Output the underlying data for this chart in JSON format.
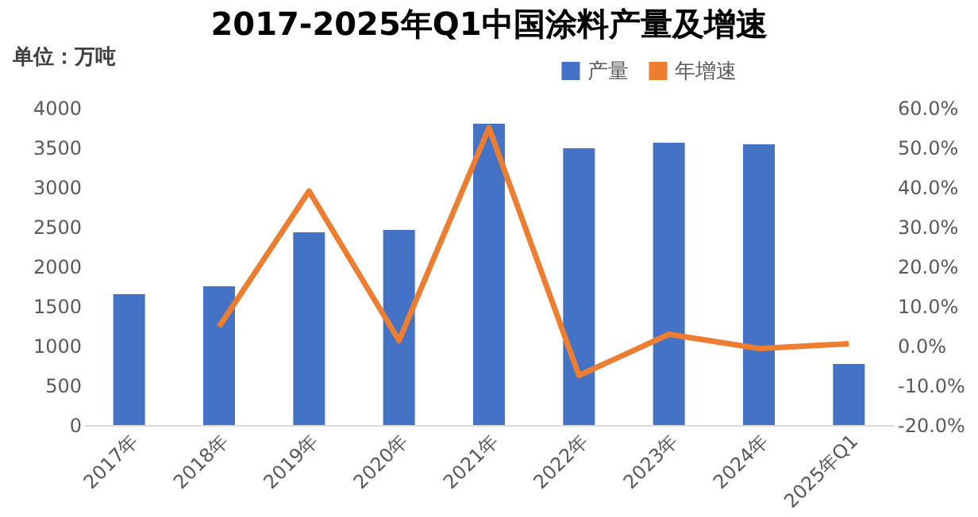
{
  "chart_data": {
    "type": "bar",
    "title": "2017-2025年Q1中国涂料产量及增速",
    "annotations": [
      "单位：万吨"
    ],
    "categories": [
      "2017年",
      "2018年",
      "2019年",
      "2020年",
      "2021年",
      "2022年",
      "2023年",
      "2024年",
      "2025年Q1"
    ],
    "series": [
      {
        "name": "产量",
        "color": "#4472c4",
        "values": [
          1650,
          1750,
          2430,
          2460,
          3800,
          3490,
          3560,
          3540,
          770
        ]
      },
      {
        "name": "年增速",
        "color": "#ed7d31",
        "type": "line",
        "axis": "y2",
        "values": [
          null,
          4.8,
          39,
          1.3,
          55,
          -7.5,
          2.9,
          -0.7,
          0.5
        ]
      }
    ],
    "ylim": [
      0,
      4000
    ],
    "yticks": [
      0,
      500,
      1000,
      1500,
      2000,
      2500,
      3000,
      3500,
      4000
    ],
    "y2lim": [
      -20,
      60
    ],
    "y2ticks": [
      {
        "value": -20,
        "label": "-20.0%"
      },
      {
        "value": -10,
        "label": "-10.0%"
      },
      {
        "value": 0,
        "label": "0.0%"
      },
      {
        "value": 10,
        "label": "10.0%"
      },
      {
        "value": 20,
        "label": "20.0%"
      },
      {
        "value": 30,
        "label": "30.0%"
      },
      {
        "value": 40,
        "label": "40.0%"
      },
      {
        "value": 50,
        "label": "50.0%"
      },
      {
        "value": 60,
        "label": "60.0%"
      }
    ],
    "grid": false,
    "legend": "top right",
    "marker": "none",
    "line_style": "solid"
  }
}
